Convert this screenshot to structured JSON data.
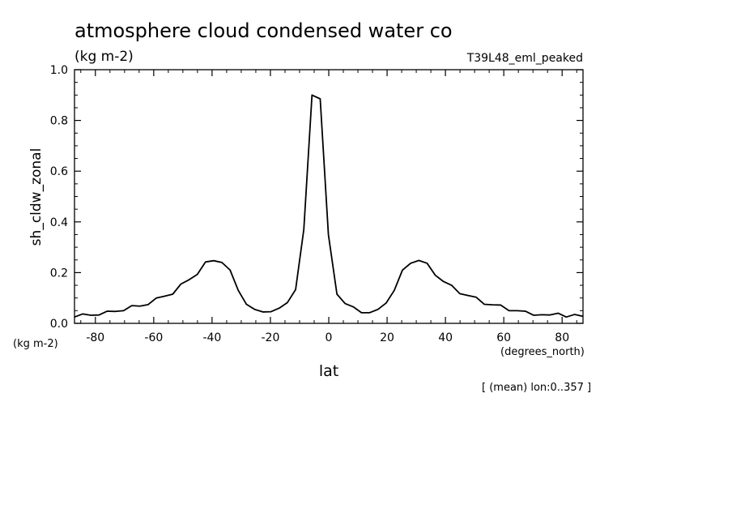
{
  "chart_data": {
    "type": "line",
    "title": "atmosphere cloud condensed water co",
    "units_top": "(kg m-2)",
    "experiment": "T39L48_eml_peaked",
    "xlabel": "lat",
    "xunits": "(degrees_north)",
    "ylabel": "sh_cldw_zonal",
    "yunits": "(kg m-2)",
    "footnote": "[ (mean) lon:0..357 ]",
    "xlim": [
      -87.16,
      87.16
    ],
    "ylim": [
      0,
      1.0
    ],
    "xticks": [
      -80,
      -60,
      -40,
      -20,
      0,
      20,
      40,
      60,
      80
    ],
    "xtick_labels": [
      "-80",
      "-60",
      "-40",
      "-20",
      "0",
      "20",
      "40",
      "60",
      "80"
    ],
    "yticks": [
      0,
      0.2,
      0.4,
      0.6,
      0.8,
      1.0
    ],
    "ytick_labels": [
      "0.0",
      "0.2",
      "0.4",
      "0.6",
      "0.8",
      "1.0"
    ],
    "series": [
      {
        "name": "sh_cldw_zonal",
        "x": [
          -87.16,
          -84.37,
          -81.56,
          -78.75,
          -75.95,
          -73.14,
          -70.33,
          -67.52,
          -64.71,
          -61.91,
          -59.1,
          -56.29,
          -53.48,
          -50.67,
          -47.87,
          -45.06,
          -42.25,
          -39.44,
          -36.63,
          -33.82,
          -31.02,
          -28.21,
          -25.4,
          -22.59,
          -19.78,
          -16.97,
          -14.17,
          -11.36,
          -8.55,
          -5.74,
          -2.93,
          -0.12,
          2.81,
          5.61,
          8.42,
          11.23,
          14.04,
          16.85,
          19.66,
          22.46,
          25.27,
          28.08,
          30.89,
          33.7,
          36.5,
          39.31,
          42.12,
          44.93,
          47.74,
          50.55,
          53.35,
          56.16,
          58.97,
          61.78,
          64.59,
          67.39,
          70.2,
          73.01,
          75.82,
          78.63,
          81.43,
          84.24,
          87.05
        ],
        "values": [
          0.025,
          0.037,
          0.032,
          0.033,
          0.048,
          0.047,
          0.05,
          0.07,
          0.068,
          0.074,
          0.1,
          0.107,
          0.115,
          0.155,
          0.172,
          0.193,
          0.242,
          0.247,
          0.24,
          0.21,
          0.13,
          0.075,
          0.055,
          0.045,
          0.046,
          0.06,
          0.082,
          0.133,
          0.37,
          0.9,
          0.885,
          0.35,
          0.115,
          0.078,
          0.065,
          0.042,
          0.042,
          0.055,
          0.08,
          0.13,
          0.21,
          0.237,
          0.248,
          0.237,
          0.19,
          0.165,
          0.15,
          0.117,
          0.11,
          0.103,
          0.075,
          0.073,
          0.072,
          0.05,
          0.05,
          0.048,
          0.032,
          0.034,
          0.033,
          0.04,
          0.025,
          0.035,
          0.028
        ]
      }
    ]
  }
}
